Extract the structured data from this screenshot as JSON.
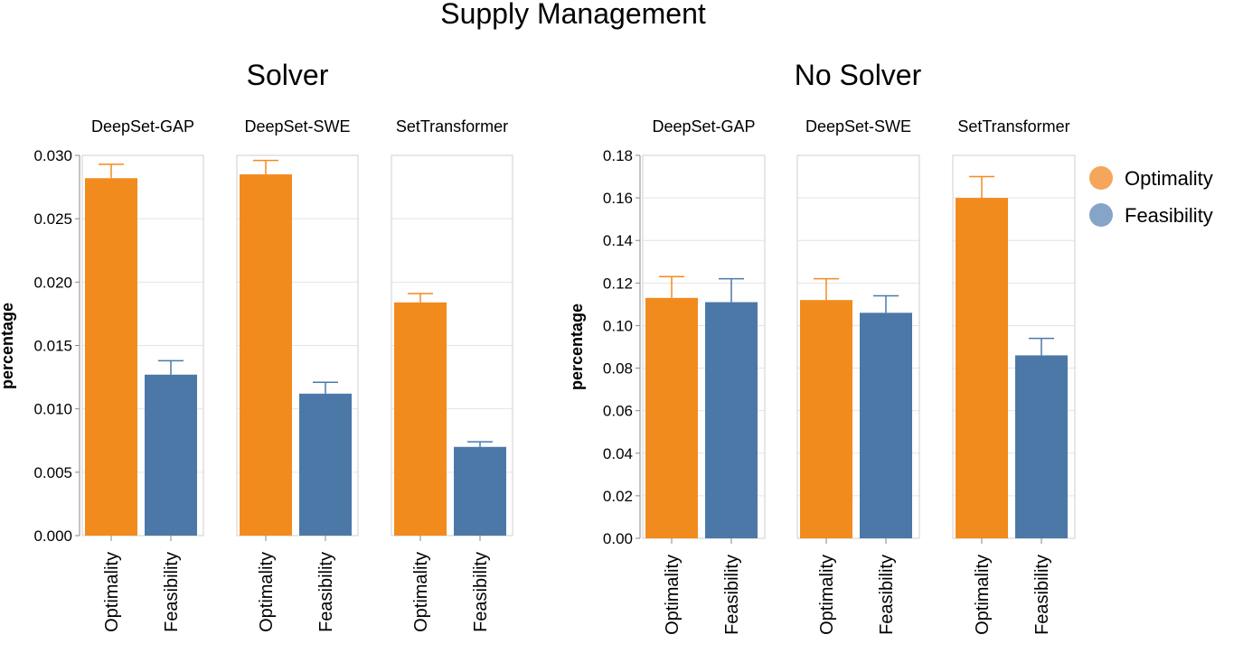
{
  "title": "Supply Management",
  "legend": [
    {
      "label": "Optimality",
      "color": "#f28b1e",
      "swatch_color": "#f5a65a"
    },
    {
      "label": "Feasibility",
      "color": "#4c78a8",
      "swatch_color": "#85a4c8"
    }
  ],
  "chart_data": [
    {
      "type": "bar",
      "title": "Solver",
      "ylabel": "percentage",
      "ylim": [
        0,
        0.03
      ],
      "yticks": [
        "0.000",
        "0.005",
        "0.010",
        "0.015",
        "0.020",
        "0.025",
        "0.030"
      ],
      "ytick_values": [
        0,
        0.005,
        0.01,
        0.015,
        0.02,
        0.025,
        0.03
      ],
      "categories": [
        "Optimality",
        "Feasibility"
      ],
      "facets": [
        {
          "name": "DeepSet-GAP",
          "values": [
            0.0282,
            0.0127
          ],
          "errors": [
            0.0011,
            0.0011
          ]
        },
        {
          "name": "DeepSet-SWE",
          "values": [
            0.0285,
            0.0112
          ],
          "errors": [
            0.0011,
            0.0009
          ]
        },
        {
          "name": "SetTransformer",
          "values": [
            0.0184,
            0.007
          ],
          "errors": [
            0.0007,
            0.0004
          ]
        }
      ]
    },
    {
      "type": "bar",
      "title": "No Solver",
      "ylabel": "percentage",
      "ylim": [
        0,
        0.18
      ],
      "yticks": [
        "0.00",
        "0.02",
        "0.04",
        "0.06",
        "0.08",
        "0.10",
        "0.12",
        "0.14",
        "0.16",
        "0.18"
      ],
      "ytick_values": [
        0,
        0.02,
        0.04,
        0.06,
        0.08,
        0.1,
        0.12,
        0.14,
        0.16,
        0.18
      ],
      "categories": [
        "Optimality",
        "Feasibility"
      ],
      "facets": [
        {
          "name": "DeepSet-GAP",
          "values": [
            0.113,
            0.111
          ],
          "errors": [
            0.01,
            0.011
          ]
        },
        {
          "name": "DeepSet-SWE",
          "values": [
            0.112,
            0.106
          ],
          "errors": [
            0.01,
            0.008
          ]
        },
        {
          "name": "SetTransformer",
          "values": [
            0.16,
            0.086
          ],
          "errors": [
            0.01,
            0.008
          ]
        }
      ]
    }
  ]
}
